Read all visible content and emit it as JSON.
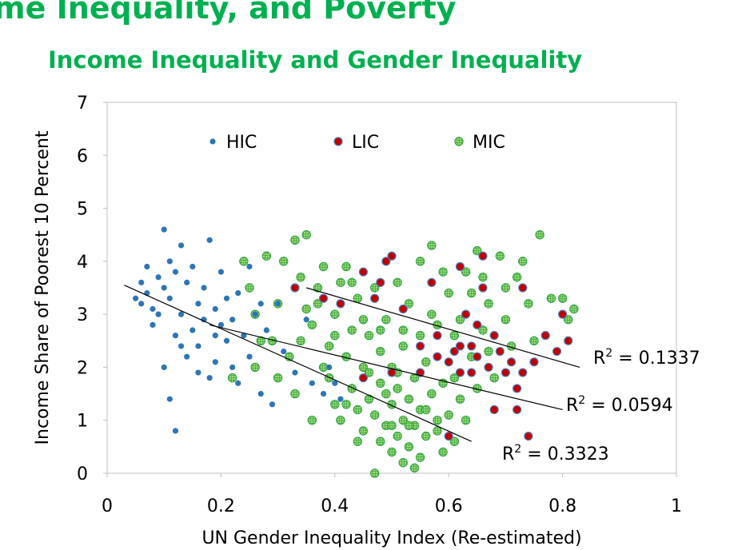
{
  "header": {
    "title": "me Inequality, and Poverty",
    "subtitle": "Income Inequality and Gender Inequality"
  },
  "chart_data": {
    "type": "scatter",
    "xlabel": "UN Gender Inequality Index (Re-estimated)",
    "ylabel": "Income Share of Poorest 10 Percent",
    "xlim": [
      0,
      1
    ],
    "ylim": [
      0,
      7
    ],
    "x_ticks": [
      0,
      0.2,
      0.4,
      0.6,
      0.8,
      1
    ],
    "x_tick_labels": [
      "0",
      "0.2",
      "0.4",
      "0.6",
      "0.8",
      "1"
    ],
    "y_ticks": [
      0,
      1,
      2,
      3,
      4,
      5,
      6,
      7
    ],
    "y_tick_labels": [
      "0",
      "1",
      "2",
      "3",
      "4",
      "5",
      "6",
      "7"
    ],
    "legend_position": "top",
    "series": [
      {
        "name": "HIC",
        "color": "#2e75b6",
        "style": "dot",
        "points": [
          [
            0.05,
            3.3
          ],
          [
            0.06,
            3.6
          ],
          [
            0.07,
            3.9
          ],
          [
            0.07,
            3.4
          ],
          [
            0.08,
            2.8
          ],
          [
            0.08,
            3.1
          ],
          [
            0.09,
            3.7
          ],
          [
            0.1,
            4.6
          ],
          [
            0.1,
            3.5
          ],
          [
            0.11,
            4.0
          ],
          [
            0.11,
            3.3
          ],
          [
            0.12,
            3.8
          ],
          [
            0.12,
            2.6
          ],
          [
            0.13,
            3.0
          ],
          [
            0.13,
            4.3
          ],
          [
            0.14,
            3.6
          ],
          [
            0.14,
            2.2
          ],
          [
            0.15,
            2.7
          ],
          [
            0.15,
            3.9
          ],
          [
            0.16,
            3.2
          ],
          [
            0.16,
            2.4
          ],
          [
            0.17,
            2.9
          ],
          [
            0.17,
            3.5
          ],
          [
            0.18,
            4.4
          ],
          [
            0.18,
            1.8
          ],
          [
            0.19,
            2.1
          ],
          [
            0.19,
            3.1
          ],
          [
            0.2,
            2.8
          ],
          [
            0.2,
            3.8
          ],
          [
            0.21,
            2.5
          ],
          [
            0.21,
            3.3
          ],
          [
            0.22,
            2.0
          ],
          [
            0.22,
            2.9
          ],
          [
            0.23,
            3.4
          ],
          [
            0.24,
            2.6
          ],
          [
            0.25,
            3.9
          ],
          [
            0.25,
            2.2
          ],
          [
            0.26,
            3.0
          ],
          [
            0.27,
            1.5
          ],
          [
            0.28,
            2.7
          ],
          [
            0.29,
            1.3
          ],
          [
            0.3,
            3.2
          ],
          [
            0.31,
            2.3
          ],
          [
            0.33,
            1.9
          ],
          [
            0.35,
            2.9
          ],
          [
            0.36,
            1.7
          ],
          [
            0.38,
            1.5
          ],
          [
            0.39,
            2.0
          ],
          [
            0.4,
            1.7
          ],
          [
            0.41,
            1.4
          ],
          [
            0.1,
            2.0
          ],
          [
            0.11,
            1.4
          ],
          [
            0.12,
            0.8
          ],
          [
            0.09,
            3.0
          ],
          [
            0.06,
            3.2
          ],
          [
            0.13,
            2.4
          ],
          [
            0.16,
            1.9
          ],
          [
            0.19,
            2.6
          ],
          [
            0.23,
            1.7
          ],
          [
            0.27,
            3.2
          ]
        ]
      },
      {
        "name": "LIC",
        "color": "#c00000",
        "style": "ring",
        "points": [
          [
            0.33,
            3.5
          ],
          [
            0.38,
            3.3
          ],
          [
            0.41,
            3.2
          ],
          [
            0.45,
            3.8
          ],
          [
            0.47,
            3.3
          ],
          [
            0.48,
            3.6
          ],
          [
            0.49,
            4.0
          ],
          [
            0.5,
            4.1
          ],
          [
            0.52,
            3.1
          ],
          [
            0.55,
            2.4
          ],
          [
            0.57,
            3.6
          ],
          [
            0.58,
            2.6
          ],
          [
            0.6,
            2.1
          ],
          [
            0.61,
            2.3
          ],
          [
            0.62,
            1.9
          ],
          [
            0.62,
            3.9
          ],
          [
            0.63,
            3.0
          ],
          [
            0.64,
            2.4
          ],
          [
            0.64,
            1.9
          ],
          [
            0.65,
            2.8
          ],
          [
            0.65,
            2.2
          ],
          [
            0.66,
            3.5
          ],
          [
            0.66,
            4.1
          ],
          [
            0.67,
            2.0
          ],
          [
            0.68,
            2.6
          ],
          [
            0.68,
            1.2
          ],
          [
            0.69,
            2.3
          ],
          [
            0.7,
            1.9
          ],
          [
            0.71,
            2.1
          ],
          [
            0.72,
            1.6
          ],
          [
            0.72,
            1.2
          ],
          [
            0.73,
            3.5
          ],
          [
            0.73,
            1.9
          ],
          [
            0.74,
            0.7
          ],
          [
            0.75,
            2.1
          ],
          [
            0.77,
            2.6
          ],
          [
            0.79,
            2.3
          ],
          [
            0.8,
            3.0
          ],
          [
            0.81,
            2.5
          ],
          [
            0.6,
            0.7
          ],
          [
            0.55,
            1.9
          ],
          [
            0.5,
            1.9
          ],
          [
            0.45,
            1.8
          ],
          [
            0.62,
            2.4
          ],
          [
            0.58,
            2.2
          ]
        ]
      },
      {
        "name": "MIC",
        "color": "#8fce66",
        "edge": "#2ea043",
        "style": "hatched",
        "points": [
          [
            0.24,
            4.0
          ],
          [
            0.25,
            3.5
          ],
          [
            0.26,
            3.0
          ],
          [
            0.27,
            2.5
          ],
          [
            0.28,
            4.1
          ],
          [
            0.3,
            3.2
          ],
          [
            0.31,
            4.0
          ],
          [
            0.32,
            2.2
          ],
          [
            0.33,
            4.4
          ],
          [
            0.34,
            3.7
          ],
          [
            0.35,
            3.1
          ],
          [
            0.35,
            4.5
          ],
          [
            0.36,
            2.8
          ],
          [
            0.37,
            3.5
          ],
          [
            0.38,
            2.0
          ],
          [
            0.38,
            3.9
          ],
          [
            0.39,
            2.4
          ],
          [
            0.4,
            3.0
          ],
          [
            0.4,
            1.3
          ],
          [
            0.41,
            3.6
          ],
          [
            0.41,
            1.0
          ],
          [
            0.42,
            2.2
          ],
          [
            0.42,
            3.9
          ],
          [
            0.43,
            1.6
          ],
          [
            0.43,
            2.7
          ],
          [
            0.44,
            1.2
          ],
          [
            0.44,
            3.3
          ],
          [
            0.45,
            2.0
          ],
          [
            0.45,
            0.8
          ],
          [
            0.46,
            2.6
          ],
          [
            0.46,
            1.4
          ],
          [
            0.47,
            3.5
          ],
          [
            0.47,
            1.1
          ],
          [
            0.47,
            0.0
          ],
          [
            0.48,
            2.3
          ],
          [
            0.48,
            0.6
          ],
          [
            0.48,
            1.7
          ],
          [
            0.49,
            0.9
          ],
          [
            0.49,
            2.9
          ],
          [
            0.5,
            1.3
          ],
          [
            0.5,
            0.4
          ],
          [
            0.5,
            2.0
          ],
          [
            0.51,
            0.7
          ],
          [
            0.51,
            1.6
          ],
          [
            0.51,
            3.6
          ],
          [
            0.52,
            1.0
          ],
          [
            0.52,
            0.2
          ],
          [
            0.52,
            2.4
          ],
          [
            0.53,
            1.4
          ],
          [
            0.53,
            0.5
          ],
          [
            0.53,
            3.2
          ],
          [
            0.54,
            0.9
          ],
          [
            0.54,
            1.8
          ],
          [
            0.55,
            0.3
          ],
          [
            0.55,
            1.2
          ],
          [
            0.55,
            4.0
          ],
          [
            0.56,
            2.1
          ],
          [
            0.56,
            0.7
          ],
          [
            0.57,
            1.5
          ],
          [
            0.57,
            4.3
          ],
          [
            0.58,
            1.0
          ],
          [
            0.58,
            2.8
          ],
          [
            0.59,
            0.4
          ],
          [
            0.59,
            1.7
          ],
          [
            0.6,
            3.4
          ],
          [
            0.6,
            1.1
          ],
          [
            0.61,
            2.6
          ],
          [
            0.61,
            0.6
          ],
          [
            0.62,
            1.4
          ],
          [
            0.63,
            3.8
          ],
          [
            0.63,
            1.0
          ],
          [
            0.64,
            2.2
          ],
          [
            0.65,
            4.2
          ],
          [
            0.65,
            1.6
          ],
          [
            0.66,
            2.7
          ],
          [
            0.67,
            3.2
          ],
          [
            0.68,
            1.8
          ],
          [
            0.69,
            4.1
          ],
          [
            0.7,
            2.9
          ],
          [
            0.71,
            2.4
          ],
          [
            0.72,
            3.7
          ],
          [
            0.74,
            3.2
          ],
          [
            0.75,
            2.5
          ],
          [
            0.76,
            4.5
          ],
          [
            0.78,
            3.3
          ],
          [
            0.8,
            3.3
          ],
          [
            0.81,
            2.9
          ],
          [
            0.82,
            3.1
          ],
          [
            0.29,
            2.5
          ],
          [
            0.33,
            1.5
          ],
          [
            0.36,
            1.0
          ],
          [
            0.39,
            1.8
          ],
          [
            0.42,
            1.3
          ],
          [
            0.44,
            0.6
          ],
          [
            0.46,
            1.9
          ],
          [
            0.49,
            1.5
          ],
          [
            0.5,
            0.9
          ],
          [
            0.53,
            0.9
          ],
          [
            0.54,
            0.1
          ],
          [
            0.56,
            1.2
          ],
          [
            0.58,
            0.8
          ],
          [
            0.61,
            1.8
          ],
          [
            0.64,
            3.4
          ],
          [
            0.67,
            2.3
          ],
          [
            0.4,
            2.6
          ],
          [
            0.43,
            3.6
          ],
          [
            0.45,
            2.9
          ],
          [
            0.52,
            2.7
          ],
          [
            0.57,
            3.0
          ],
          [
            0.22,
            1.8
          ],
          [
            0.26,
            2.0
          ],
          [
            0.3,
            1.8
          ],
          [
            0.34,
            2.5
          ],
          [
            0.37,
            3.2
          ],
          [
            0.48,
            2.7
          ],
          [
            0.51,
            1.9
          ],
          [
            0.55,
            2.6
          ],
          [
            0.59,
            3.8
          ],
          [
            0.62,
            2.9
          ],
          [
            0.66,
            3.7
          ],
          [
            0.7,
            3.5
          ],
          [
            0.73,
            4.0
          ]
        ]
      }
    ],
    "trendlines": [
      {
        "name": "HIC fit",
        "x": [
          0.03,
          0.64
        ],
        "y": [
          3.55,
          0.6
        ],
        "label": "R² = 0.3323",
        "label_base": "R",
        "label_rest": " = 0.3323"
      },
      {
        "name": "MIC fit",
        "x": [
          0.18,
          0.8
        ],
        "y": [
          2.8,
          1.2
        ],
        "label": "R² = 0.0594",
        "label_base": "R",
        "label_rest": " = 0.0594"
      },
      {
        "name": "LIC fit",
        "x": [
          0.35,
          0.83
        ],
        "y": [
          3.5,
          2.0
        ],
        "label": "R² = 0.1337",
        "label_base": "R",
        "label_rest": " = 0.1337"
      }
    ],
    "legend_entries": [
      "HIC",
      "LIC",
      "MIC"
    ]
  }
}
